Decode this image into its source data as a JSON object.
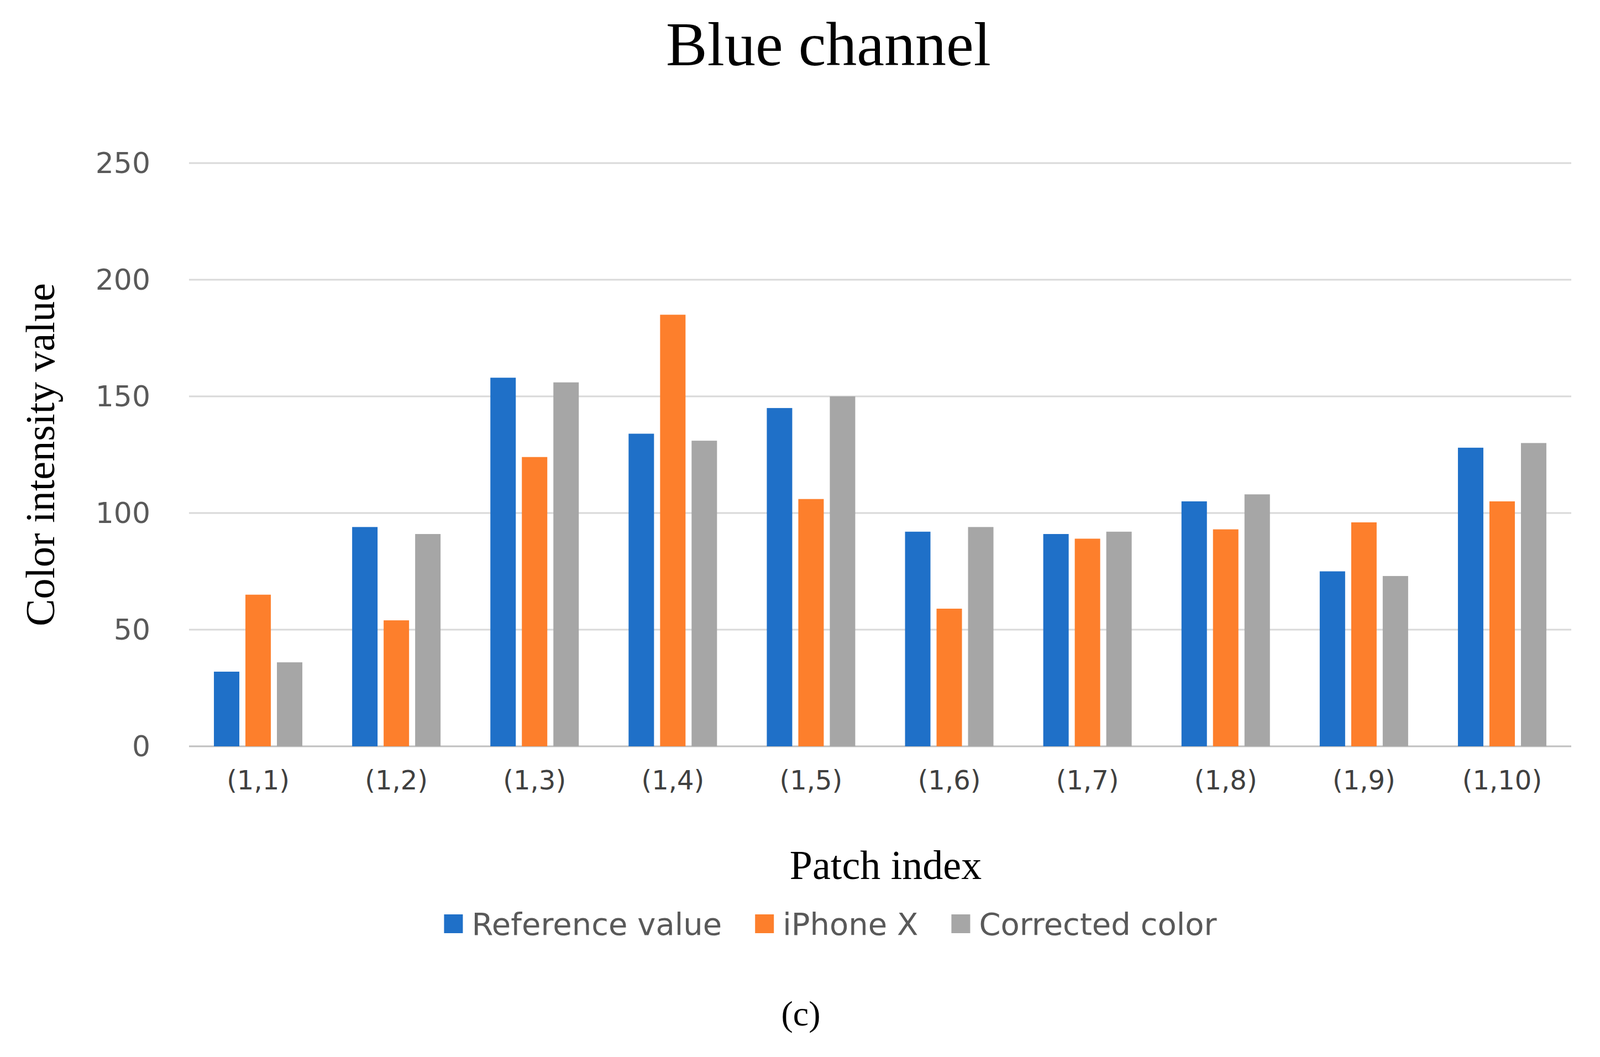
{
  "chart_data": {
    "type": "bar",
    "title": "Blue channel",
    "x_label": "Patch index",
    "y_label": "Color intensity value",
    "caption": "(c)",
    "categories": [
      "(1,1)",
      "(1,2)",
      "(1,3)",
      "(1,4)",
      "(1,5)",
      "(1,6)",
      "(1,7)",
      "(1,8)",
      "(1,9)",
      "(1,10)"
    ],
    "series": [
      {
        "name": "Reference value",
        "color": "#1f70c8",
        "values": [
          32,
          94,
          158,
          134,
          145,
          92,
          91,
          105,
          75,
          128
        ]
      },
      {
        "name": "iPhone X",
        "color": "#fd7f2c",
        "values": [
          65,
          54,
          124,
          185,
          106,
          59,
          89,
          93,
          96,
          105
        ]
      },
      {
        "name": "Corrected color",
        "color": "#a6a6a6",
        "values": [
          36,
          91,
          156,
          131,
          150,
          94,
          92,
          108,
          73,
          130
        ]
      }
    ],
    "ylim": [
      0,
      250
    ],
    "yticks": [
      0,
      50,
      100,
      150,
      200,
      250
    ],
    "grid": true,
    "legend": "bottom"
  }
}
